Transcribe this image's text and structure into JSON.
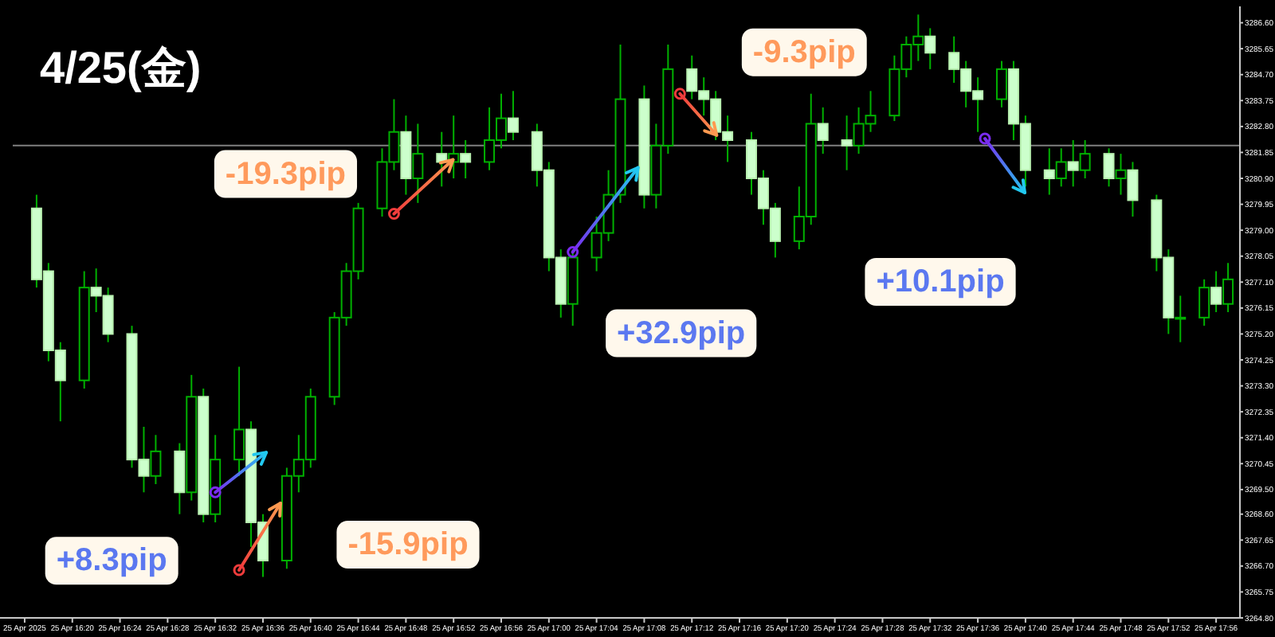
{
  "chart_data": {
    "type": "candlestick",
    "title": "4/25(金)",
    "x": [
      "2025-04-25T16:17",
      "2025-04-25T16:18",
      "2025-04-25T16:19",
      "2025-04-25T16:21",
      "2025-04-25T16:22",
      "2025-04-25T16:23",
      "2025-04-25T16:25",
      "2025-04-25T16:26",
      "2025-04-25T16:27",
      "2025-04-25T16:29",
      "2025-04-25T16:30",
      "2025-04-25T16:31",
      "2025-04-25T16:32",
      "2025-04-25T16:34",
      "2025-04-25T16:35",
      "2025-04-25T16:36",
      "2025-04-25T16:38",
      "2025-04-25T16:39",
      "2025-04-25T16:40",
      "2025-04-25T16:42",
      "2025-04-25T16:43",
      "2025-04-25T16:44",
      "2025-04-25T16:46",
      "2025-04-25T16:47",
      "2025-04-25T16:48",
      "2025-04-25T16:49",
      "2025-04-25T16:51",
      "2025-04-25T16:52",
      "2025-04-25T16:53",
      "2025-04-25T16:55",
      "2025-04-25T16:56",
      "2025-04-25T16:57",
      "2025-04-25T16:59",
      "2025-04-25T17:00",
      "2025-04-25T17:01",
      "2025-04-25T17:02",
      "2025-04-25T17:04",
      "2025-04-25T17:05",
      "2025-04-25T17:06",
      "2025-04-25T17:08",
      "2025-04-25T17:09",
      "2025-04-25T17:10",
      "2025-04-25T17:12",
      "2025-04-25T17:13",
      "2025-04-25T17:14",
      "2025-04-25T17:15",
      "2025-04-25T17:17",
      "2025-04-25T17:18",
      "2025-04-25T17:19",
      "2025-04-25T17:21",
      "2025-04-25T17:22",
      "2025-04-25T17:23",
      "2025-04-25T17:25",
      "2025-04-25T17:26",
      "2025-04-25T17:27",
      "2025-04-25T17:29",
      "2025-04-25T17:30",
      "2025-04-25T17:31",
      "2025-04-25T17:32",
      "2025-04-25T17:34",
      "2025-04-25T17:35",
      "2025-04-25T17:36",
      "2025-04-25T17:38",
      "2025-04-25T17:39",
      "2025-04-25T17:40",
      "2025-04-25T17:42",
      "2025-04-25T17:43",
      "2025-04-25T17:44",
      "2025-04-25T17:45",
      "2025-04-25T17:47",
      "2025-04-25T17:48",
      "2025-04-25T17:49",
      "2025-04-25T17:51",
      "2025-04-25T17:52",
      "2025-04-25T17:53",
      "2025-04-25T17:55",
      "2025-04-25T17:56",
      "2025-04-25T17:57"
    ],
    "ohlc": [
      [
        3279.8,
        3280.3,
        3276.9,
        3277.2
      ],
      [
        3277.5,
        3277.8,
        3274.2,
        3274.6
      ],
      [
        3274.6,
        3274.9,
        3272.0,
        3273.5
      ],
      [
        3273.5,
        3277.5,
        3273.2,
        3276.9
      ],
      [
        3276.9,
        3277.6,
        3276.0,
        3276.6
      ],
      [
        3276.6,
        3276.9,
        3274.9,
        3275.2
      ],
      [
        3275.2,
        3275.5,
        3270.3,
        3270.6
      ],
      [
        3270.6,
        3271.8,
        3269.4,
        3270.0
      ],
      [
        3270.0,
        3271.5,
        3269.7,
        3270.9
      ],
      [
        3270.9,
        3271.2,
        3268.6,
        3269.4
      ],
      [
        3269.4,
        3273.7,
        3269.1,
        3272.9
      ],
      [
        3272.9,
        3273.2,
        3268.3,
        3268.6
      ],
      [
        3268.6,
        3271.5,
        3268.3,
        3270.6
      ],
      [
        3270.6,
        3274.0,
        3270.0,
        3271.7
      ],
      [
        3271.7,
        3272.0,
        3267.4,
        3268.3
      ],
      [
        3268.3,
        3268.6,
        3266.3,
        3266.9
      ],
      [
        3266.9,
        3270.3,
        3266.6,
        3270.0
      ],
      [
        3270.0,
        3271.5,
        3269.4,
        3270.6
      ],
      [
        3270.6,
        3273.2,
        3270.3,
        3272.9
      ],
      [
        3272.9,
        3276.0,
        3272.6,
        3275.8
      ],
      [
        3275.8,
        3277.8,
        3275.5,
        3277.5
      ],
      [
        3277.5,
        3280.0,
        3277.2,
        3279.8
      ],
      [
        3279.8,
        3282.0,
        3279.5,
        3281.5
      ],
      [
        3281.5,
        3283.8,
        3281.2,
        3282.6
      ],
      [
        3282.6,
        3283.2,
        3280.3,
        3280.9
      ],
      [
        3280.9,
        3282.9,
        3280.0,
        3281.8
      ],
      [
        3281.8,
        3282.6,
        3280.6,
        3281.5
      ],
      [
        3281.5,
        3283.2,
        3280.9,
        3281.8
      ],
      [
        3281.8,
        3282.3,
        3280.9,
        3281.5
      ],
      [
        3281.5,
        3283.5,
        3281.2,
        3282.3
      ],
      [
        3282.3,
        3284.0,
        3282.0,
        3283.1
      ],
      [
        3283.1,
        3284.1,
        3282.3,
        3282.6
      ],
      [
        3282.6,
        3282.9,
        3280.6,
        3281.2
      ],
      [
        3281.2,
        3281.5,
        3277.5,
        3278.0
      ],
      [
        3278.0,
        3278.3,
        3275.8,
        3276.3
      ],
      [
        3276.3,
        3278.3,
        3275.5,
        3278.0
      ],
      [
        3278.0,
        3279.5,
        3277.5,
        3278.9
      ],
      [
        3278.9,
        3281.2,
        3278.6,
        3280.3
      ],
      [
        3280.3,
        3285.8,
        3280.0,
        3283.8
      ],
      [
        3283.8,
        3284.3,
        3279.8,
        3280.3
      ],
      [
        3280.3,
        3282.9,
        3279.8,
        3282.1
      ],
      [
        3282.1,
        3285.8,
        3281.8,
        3284.9
      ],
      [
        3284.9,
        3285.4,
        3283.8,
        3284.1
      ],
      [
        3284.1,
        3284.6,
        3283.2,
        3283.8
      ],
      [
        3283.8,
        3284.1,
        3282.3,
        3282.6
      ],
      [
        3282.6,
        3283.2,
        3281.5,
        3282.3
      ],
      [
        3282.3,
        3282.6,
        3280.3,
        3280.9
      ],
      [
        3280.9,
        3281.2,
        3279.2,
        3279.8
      ],
      [
        3279.8,
        3280.0,
        3278.0,
        3278.6
      ],
      [
        3278.6,
        3280.6,
        3278.3,
        3279.5
      ],
      [
        3279.5,
        3284.0,
        3279.2,
        3282.9
      ],
      [
        3282.9,
        3283.5,
        3281.8,
        3282.3
      ],
      [
        3282.3,
        3283.2,
        3281.2,
        3282.1
      ],
      [
        3282.1,
        3283.5,
        3281.8,
        3282.9
      ],
      [
        3282.9,
        3284.1,
        3282.6,
        3283.2
      ],
      [
        3283.2,
        3285.4,
        3283.0,
        3284.9
      ],
      [
        3284.9,
        3286.1,
        3284.6,
        3285.8
      ],
      [
        3285.8,
        3286.9,
        3285.2,
        3286.1
      ],
      [
        3286.1,
        3286.4,
        3284.9,
        3285.5
      ],
      [
        3285.5,
        3286.1,
        3284.4,
        3284.9
      ],
      [
        3284.9,
        3285.2,
        3283.5,
        3284.1
      ],
      [
        3284.1,
        3284.6,
        3282.6,
        3283.8
      ],
      [
        3283.8,
        3285.2,
        3283.5,
        3284.9
      ],
      [
        3284.9,
        3285.2,
        3282.3,
        3282.9
      ],
      [
        3282.9,
        3283.2,
        3280.6,
        3281.2
      ],
      [
        3281.2,
        3282.0,
        3280.3,
        3280.9
      ],
      [
        3280.9,
        3282.0,
        3280.6,
        3281.5
      ],
      [
        3281.5,
        3282.3,
        3280.6,
        3281.2
      ],
      [
        3281.2,
        3282.3,
        3280.9,
        3281.8
      ],
      [
        3281.8,
        3282.0,
        3280.6,
        3280.9
      ],
      [
        3280.9,
        3281.8,
        3280.3,
        3281.2
      ],
      [
        3281.2,
        3281.5,
        3279.5,
        3280.1
      ],
      [
        3280.1,
        3280.3,
        3277.5,
        3278.0
      ],
      [
        3278.0,
        3278.3,
        3275.2,
        3275.8
      ],
      [
        3275.8,
        3276.6,
        3274.9,
        3275.8
      ],
      [
        3275.8,
        3277.2,
        3275.5,
        3276.9
      ],
      [
        3276.9,
        3277.5,
        3276.0,
        3276.3
      ],
      [
        3276.3,
        3277.8,
        3276.0,
        3277.2
      ]
    ],
    "xlim": [
      "2025-04-25T16:15",
      "2025-04-25T17:58"
    ],
    "ylim": [
      3264.8,
      3287.2
    ],
    "xticks": [
      {
        "value": "2025-04-25T16:16",
        "label": "25 Apr 2025"
      },
      {
        "value": "2025-04-25T16:20",
        "label": "25 Apr 16:20"
      },
      {
        "value": "2025-04-25T16:24",
        "label": "25 Apr 16:24"
      },
      {
        "value": "2025-04-25T16:28",
        "label": "25 Apr 16:28"
      },
      {
        "value": "2025-04-25T16:32",
        "label": "25 Apr 16:32"
      },
      {
        "value": "2025-04-25T16:36",
        "label": "25 Apr 16:36"
      },
      {
        "value": "2025-04-25T16:40",
        "label": "25 Apr 16:40"
      },
      {
        "value": "2025-04-25T16:44",
        "label": "25 Apr 16:44"
      },
      {
        "value": "2025-04-25T16:48",
        "label": "25 Apr 16:48"
      },
      {
        "value": "2025-04-25T16:52",
        "label": "25 Apr 16:52"
      },
      {
        "value": "2025-04-25T16:56",
        "label": "25 Apr 16:56"
      },
      {
        "value": "2025-04-25T17:00",
        "label": "25 Apr 17:00"
      },
      {
        "value": "2025-04-25T17:04",
        "label": "25 Apr 17:04"
      },
      {
        "value": "2025-04-25T17:08",
        "label": "25 Apr 17:08"
      },
      {
        "value": "2025-04-25T17:12",
        "label": "25 Apr 17:12"
      },
      {
        "value": "2025-04-25T17:16",
        "label": "25 Apr 17:16"
      },
      {
        "value": "2025-04-25T17:20",
        "label": "25 Apr 17:20"
      },
      {
        "value": "2025-04-25T17:24",
        "label": "25 Apr 17:24"
      },
      {
        "value": "2025-04-25T17:28",
        "label": "25 Apr 17:28"
      },
      {
        "value": "2025-04-25T17:32",
        "label": "25 Apr 17:32"
      },
      {
        "value": "2025-04-25T17:36",
        "label": "25 Apr 17:36"
      },
      {
        "value": "2025-04-25T17:40",
        "label": "25 Apr 17:40"
      },
      {
        "value": "2025-04-25T17:44",
        "label": "25 Apr 17:44"
      },
      {
        "value": "2025-04-25T17:48",
        "label": "25 Apr 17:48"
      },
      {
        "value": "2025-04-25T17:52",
        "label": "25 Apr 17:52"
      },
      {
        "value": "2025-04-25T17:56",
        "label": "25 Apr 17:56"
      }
    ],
    "yticks": [
      {
        "value": 3264.8,
        "label": "3264.80"
      },
      {
        "value": 3265.75,
        "label": "3265.75"
      },
      {
        "value": 3266.7,
        "label": "3266.70"
      },
      {
        "value": 3267.65,
        "label": "3267.65"
      },
      {
        "value": 3268.6,
        "label": "3268.60"
      },
      {
        "value": 3269.5,
        "label": "3269.50"
      },
      {
        "value": 3270.45,
        "label": "3270.45"
      },
      {
        "value": 3271.4,
        "label": "3271.40"
      },
      {
        "value": 3272.35,
        "label": "3272.35"
      },
      {
        "value": 3273.3,
        "label": "3273.30"
      },
      {
        "value": 3274.25,
        "label": "3274.25"
      },
      {
        "value": 3275.2,
        "label": "3275.20"
      },
      {
        "value": 3276.15,
        "label": "3276.15"
      },
      {
        "value": 3277.1,
        "label": "3277.10"
      },
      {
        "value": 3278.05,
        "label": "3278.05"
      },
      {
        "value": 3279.0,
        "label": "3279.00"
      },
      {
        "value": 3279.95,
        "label": "3279.95"
      },
      {
        "value": 3280.9,
        "label": "3280.90"
      },
      {
        "value": 3281.85,
        "label": "3281.85"
      },
      {
        "value": 3282.8,
        "label": "3282.80"
      },
      {
        "value": 3283.75,
        "label": "3283.75"
      },
      {
        "value": 3284.7,
        "label": "3284.70"
      },
      {
        "value": 3285.65,
        "label": "3285.65"
      },
      {
        "value": 3286.6,
        "label": "3286.60"
      }
    ],
    "ref_lines": [
      {
        "axis": "y",
        "value": 3282.1,
        "color": "#808080"
      }
    ],
    "grid": false,
    "annotations": [
      {
        "text": "+8.3pip",
        "x": "2025-04-25T16:32",
        "y": 3269.4
      },
      "-15.9pip",
      {
        "text": "-19.3pip",
        "x": "2025-04-25T16:47",
        "y": 3279.6
      },
      {
        "text": "+32.9pip",
        "x": "2025-04-25T17:02",
        "y": 3278.2
      },
      {
        "text": "-9.3pip",
        "x": "2025-04-25T17:11",
        "y": 3284.0
      },
      "+10.1pip"
    ]
  }
}
